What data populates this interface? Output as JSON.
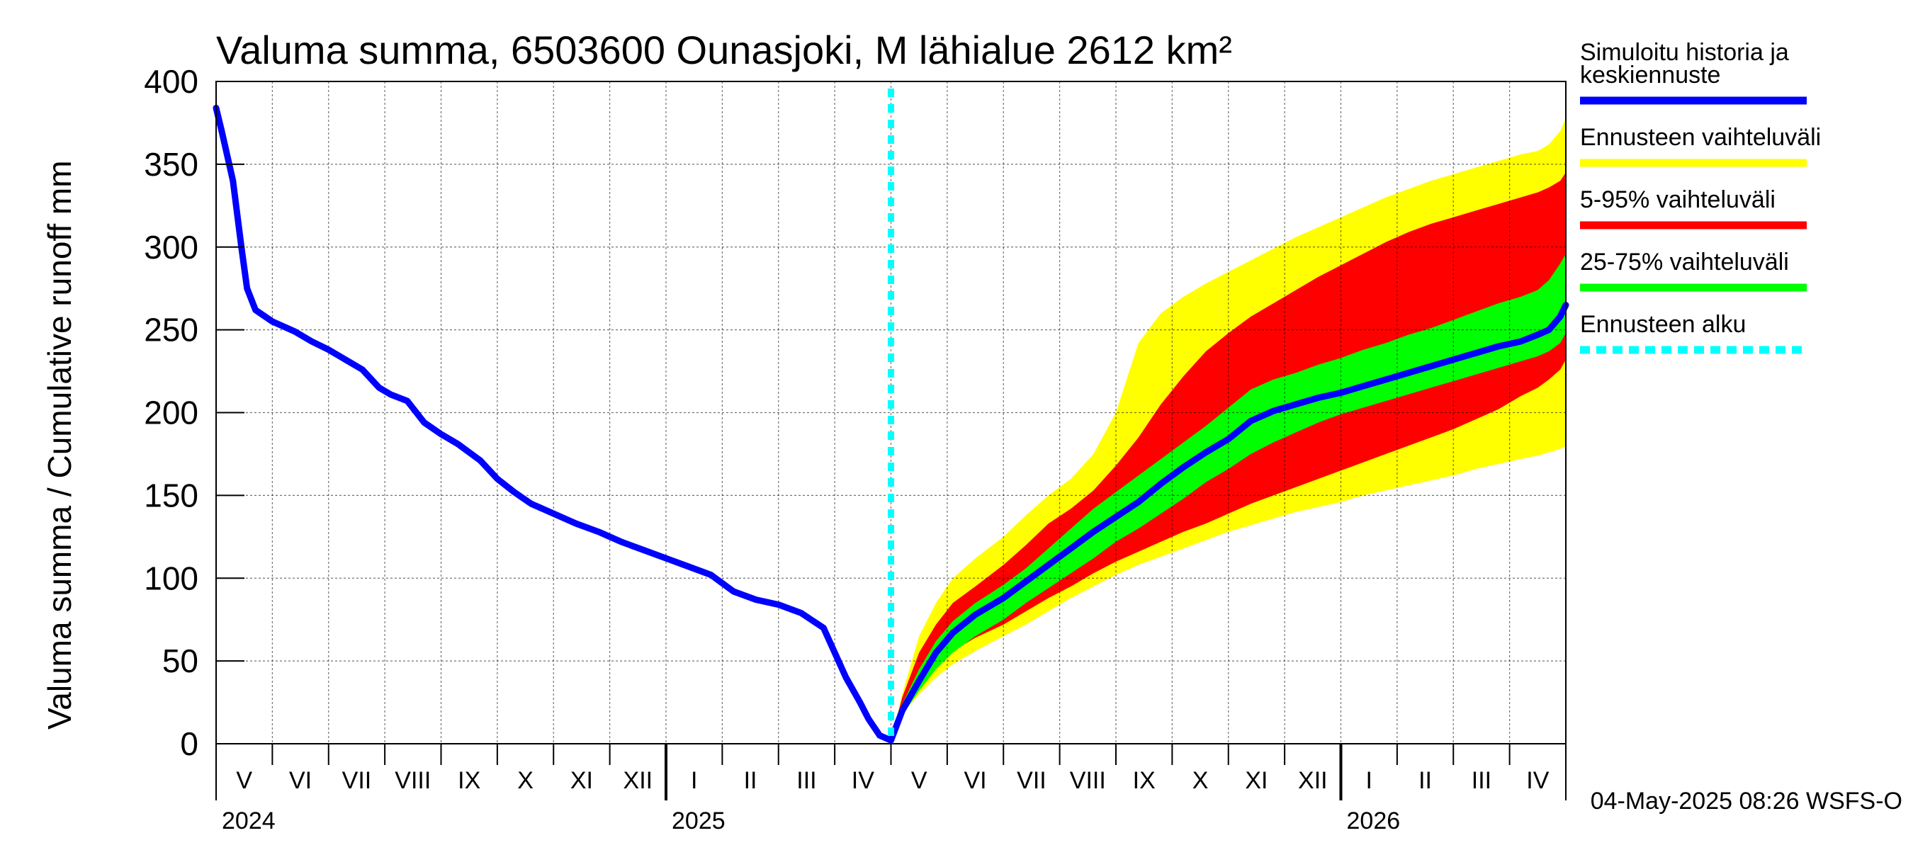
{
  "chart_data": {
    "type": "area",
    "title": "Valuma summa, 6503600 Ounasjoki, M lähialue 2612 km²",
    "ylabel": "Valuma summa / Cumulative runoff    mm",
    "xlabel": "",
    "ylim": [
      0,
      400
    ],
    "yticks": [
      "0",
      "50",
      "100",
      "150",
      "200",
      "250",
      "300",
      "350",
      "400"
    ],
    "months": [
      "V",
      "VI",
      "VII",
      "VIII",
      "IX",
      "X",
      "XI",
      "XII",
      "I",
      "II",
      "III",
      "IV",
      "V",
      "VI",
      "VII",
      "VIII",
      "IX",
      "X",
      "XI",
      "XII",
      "I",
      "II",
      "III",
      "IV"
    ],
    "years": [
      "2024",
      "2025",
      "2026"
    ],
    "forecast_start_month": 12,
    "grid": true,
    "colors": {
      "history": "#0000ff",
      "range": "#ffff00",
      "p5_95": "#ff0000",
      "p25_75": "#00ff00",
      "forecast_start": "#00ffff"
    },
    "history": {
      "x": [
        0,
        0.1,
        0.3,
        0.45,
        0.55,
        0.7,
        1.0,
        1.4,
        1.7,
        2.0,
        2.3,
        2.6,
        2.9,
        3.1,
        3.4,
        3.7,
        4.0,
        4.3,
        4.7,
        5.0,
        5.3,
        5.6,
        6.0,
        6.4,
        6.8,
        7.2,
        7.6,
        8.0,
        8.4,
        8.8,
        9.2,
        9.6,
        10.0,
        10.4,
        10.8,
        11.2,
        11.45,
        11.6,
        11.8,
        12.0
      ],
      "values": [
        384,
        370,
        340,
        300,
        275,
        262,
        255,
        249,
        243,
        238,
        232,
        226,
        215,
        211,
        207,
        194,
        187,
        181,
        171,
        160,
        152,
        145,
        139,
        133,
        128,
        122,
        117,
        112,
        107,
        102,
        92,
        87,
        84,
        79,
        70,
        40,
        25,
        15,
        5,
        2
      ]
    },
    "series": [
      {
        "name": "Simuloitu historia ja keskiennuste",
        "x": [
          12.0,
          12.2,
          12.5,
          12.8,
          13.1,
          13.5,
          14.0,
          14.4,
          14.8,
          15.2,
          15.6,
          16.0,
          16.4,
          16.8,
          17.2,
          17.6,
          18.0,
          18.4,
          18.8,
          19.2,
          19.6,
          20.0,
          20.4,
          20.8,
          21.2,
          21.6,
          22.0,
          22.4,
          22.8,
          23.2,
          23.5,
          23.7,
          23.9,
          24.0
        ],
        "values": [
          2,
          20,
          38,
          55,
          67,
          78,
          88,
          98,
          108,
          118,
          128,
          137,
          146,
          157,
          167,
          176,
          184,
          195,
          201,
          205,
          209,
          212,
          216,
          220,
          224,
          228,
          232,
          236,
          240,
          243,
          247,
          250,
          258,
          265
        ]
      },
      {
        "name": "Ennusteen vaihteluväli",
        "x": [
          12.0,
          12.2,
          12.5,
          12.8,
          13.1,
          13.5,
          14.0,
          14.4,
          14.8,
          15.2,
          15.6,
          16.0,
          16.4,
          16.8,
          17.2,
          17.6,
          18.0,
          18.4,
          18.8,
          19.2,
          19.6,
          20.0,
          20.4,
          20.8,
          21.2,
          21.6,
          22.0,
          22.4,
          22.8,
          23.2,
          23.5,
          23.7,
          23.9,
          24.0
        ],
        "lower": [
          2,
          18,
          30,
          40,
          48,
          56,
          65,
          72,
          80,
          88,
          95,
          102,
          108,
          113,
          118,
          123,
          128,
          132,
          136,
          140,
          143,
          146,
          150,
          153,
          156,
          159,
          162,
          166,
          169,
          172,
          174,
          176,
          178,
          180
        ],
        "upper": [
          2,
          30,
          65,
          85,
          100,
          112,
          125,
          138,
          150,
          160,
          175,
          200,
          242,
          260,
          270,
          278,
          285,
          292,
          299,
          306,
          312,
          318,
          324,
          330,
          335,
          340,
          344,
          348,
          352,
          356,
          358,
          362,
          370,
          378
        ]
      },
      {
        "name": "5-95% vaihteluväli",
        "x": [
          12.0,
          12.2,
          12.5,
          12.8,
          13.1,
          13.5,
          14.0,
          14.4,
          14.8,
          15.2,
          15.6,
          16.0,
          16.4,
          16.8,
          17.2,
          17.6,
          18.0,
          18.4,
          18.8,
          19.2,
          19.6,
          20.0,
          20.4,
          20.8,
          21.2,
          21.6,
          22.0,
          22.4,
          22.8,
          23.2,
          23.5,
          23.7,
          23.9,
          24.0
        ],
        "lower": [
          2,
          20,
          35,
          47,
          56,
          64,
          72,
          80,
          88,
          95,
          103,
          110,
          116,
          122,
          128,
          133,
          139,
          145,
          150,
          155,
          160,
          165,
          170,
          175,
          180,
          185,
          190,
          196,
          202,
          210,
          215,
          220,
          226,
          232
        ],
        "upper": [
          2,
          28,
          55,
          72,
          85,
          95,
          108,
          120,
          133,
          142,
          153,
          168,
          185,
          205,
          222,
          237,
          248,
          258,
          266,
          274,
          282,
          289,
          296,
          303,
          309,
          314,
          318,
          322,
          326,
          330,
          333,
          336,
          340,
          345
        ]
      },
      {
        "name": "25-75% vaihteluväli",
        "x": [
          12.0,
          12.2,
          12.5,
          12.8,
          13.1,
          13.5,
          14.0,
          14.4,
          14.8,
          15.2,
          15.6,
          16.0,
          16.4,
          16.8,
          17.2,
          17.6,
          18.0,
          18.4,
          18.8,
          19.2,
          19.6,
          20.0,
          20.4,
          20.8,
          21.2,
          21.6,
          22.0,
          22.4,
          22.8,
          23.2,
          23.5,
          23.7,
          23.9,
          24.0
        ],
        "lower": [
          2,
          17,
          32,
          45,
          55,
          65,
          75,
          85,
          94,
          103,
          112,
          122,
          130,
          139,
          148,
          158,
          166,
          175,
          182,
          188,
          194,
          199,
          203,
          207,
          211,
          215,
          219,
          223,
          227,
          231,
          234,
          237,
          242,
          248
        ],
        "upper": [
          2,
          24,
          45,
          62,
          74,
          85,
          96,
          106,
          118,
          130,
          142,
          152,
          162,
          172,
          182,
          192,
          203,
          214,
          220,
          224,
          229,
          233,
          238,
          242,
          247,
          251,
          256,
          261,
          266,
          270,
          274,
          280,
          290,
          296
        ]
      },
      {
        "name": "Ennusteen alku"
      }
    ],
    "legend": [
      {
        "label": "Simuloitu historia ja",
        "label2": "keskiennuste",
        "color": "#0000ff",
        "style": "solid"
      },
      {
        "label": "Ennusteen vaihteluväli",
        "color": "#ffff00",
        "style": "solid"
      },
      {
        "label": "5-95% vaihteluväli",
        "color": "#ff0000",
        "style": "solid"
      },
      {
        "label": "25-75% vaihteluväli",
        "color": "#00ff00",
        "style": "solid"
      },
      {
        "label": "Ennusteen alku",
        "color": "#00ffff",
        "style": "dashed"
      }
    ],
    "legend_position": "right"
  },
  "footer": "04-May-2025 08:26 WSFS-O"
}
